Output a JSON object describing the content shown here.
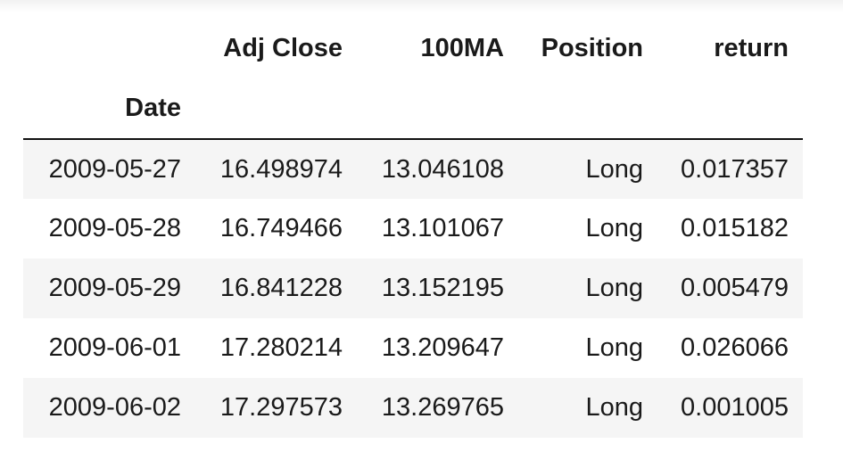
{
  "table": {
    "index_name": "Date",
    "columns": [
      "Adj Close",
      "100MA",
      "Position",
      "return"
    ],
    "rows": [
      {
        "date": "2009-05-27",
        "adj_close": "16.498974",
        "ma100": "13.046108",
        "position": "Long",
        "return": "0.017357"
      },
      {
        "date": "2009-05-28",
        "adj_close": "16.749466",
        "ma100": "13.101067",
        "position": "Long",
        "return": "0.015182"
      },
      {
        "date": "2009-05-29",
        "adj_close": "16.841228",
        "ma100": "13.152195",
        "position": "Long",
        "return": "0.005479"
      },
      {
        "date": "2009-06-01",
        "adj_close": "17.280214",
        "ma100": "13.209647",
        "position": "Long",
        "return": "0.026066"
      },
      {
        "date": "2009-06-02",
        "adj_close": "17.297573",
        "ma100": "13.269765",
        "position": "Long",
        "return": "0.001005"
      }
    ]
  },
  "colors": {
    "stripe": "#f5f5f5",
    "text": "#1a1a1a",
    "rule": "#111111"
  }
}
